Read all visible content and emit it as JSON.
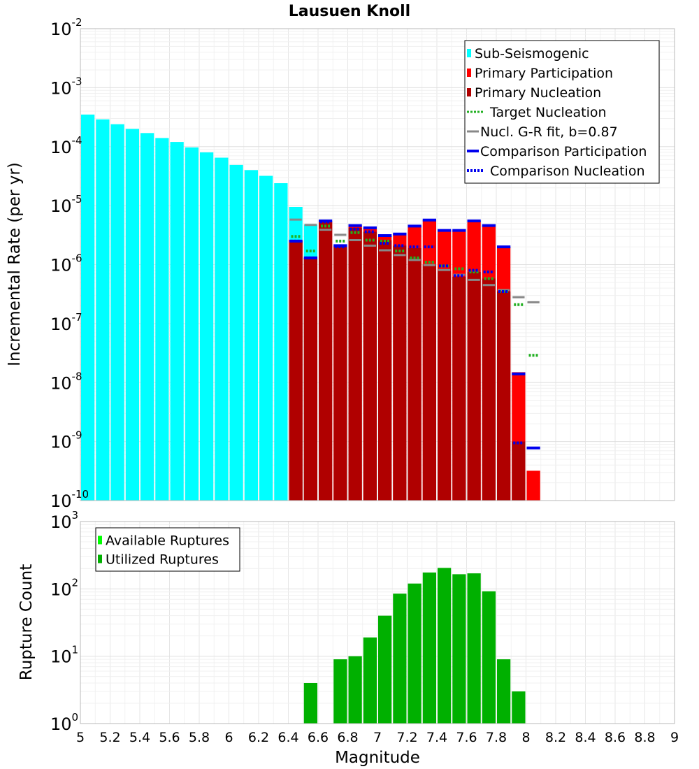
{
  "chart_data": [
    {
      "type": "bar",
      "title": "Lausuen Knoll",
      "xlabel": "",
      "ylabel": "Incremental Rate (per yr)",
      "yscale": "log",
      "xlim": [
        5,
        9
      ],
      "ylim": [
        1e-10,
        0.01
      ],
      "y_tick_exponents": [
        "-10",
        "-9",
        "-8",
        "-7",
        "-6",
        "-5",
        "-4",
        "-3",
        "-2"
      ],
      "y_tick_base": "10",
      "bin_width": 0.1,
      "legend_position": "top-right",
      "legend": [
        {
          "label": "Sub-Seismogenic",
          "color": "#00ffff",
          "kind": "bar"
        },
        {
          "label": "Primary Participation",
          "color": "#ff0000",
          "kind": "bar"
        },
        {
          "label": "Primary Nucleation",
          "color": "#b00000",
          "kind": "bar"
        },
        {
          "label": "Target Nucleation",
          "color": "#22b022",
          "kind": "dotted"
        },
        {
          "label": "Nucl. G-R fit, b=0.87",
          "color": "#888888",
          "kind": "solid"
        },
        {
          "label": "Comparison Participation",
          "color": "#0000ee",
          "kind": "solid"
        },
        {
          "label": "Comparison Nucleation",
          "color": "#0000ee",
          "kind": "dotted"
        }
      ],
      "series": [
        {
          "name": "Sub-Seismogenic",
          "x": [
            5.05,
            5.15,
            5.25,
            5.35,
            5.45,
            5.55,
            5.65,
            5.75,
            5.85,
            5.95,
            6.05,
            6.15,
            6.25,
            6.35,
            6.45,
            6.55
          ],
          "values": [
            0.00035,
            0.00029,
            0.00024,
            0.0002,
            0.00017,
            0.00014,
            0.00012,
            9.7e-05,
            8e-05,
            6.5e-05,
            4.9e-05,
            4e-05,
            3.2e-05,
            2.4e-05,
            9.5e-06,
            4.8e-06
          ]
        },
        {
          "name": "Primary Participation",
          "x": [
            6.45,
            6.55,
            6.65,
            6.75,
            6.85,
            6.95,
            7.05,
            7.15,
            7.25,
            7.35,
            7.45,
            7.55,
            7.65,
            7.75,
            7.85,
            7.95,
            8.05
          ],
          "values": [
            2.5e-06,
            1.3e-06,
            5.5e-06,
            2.1e-06,
            4.6e-06,
            4.2e-06,
            3.1e-06,
            3.3e-06,
            4.5e-06,
            5.7e-06,
            3.8e-06,
            3.8e-06,
            5.5e-06,
            4.6e-06,
            2e-06,
            1.5e-08,
            3.2e-10
          ]
        },
        {
          "name": "Primary Nucleation",
          "x": [
            6.45,
            6.55,
            6.65,
            6.75,
            6.85,
            6.95,
            7.05,
            7.15,
            7.25,
            7.35,
            7.45,
            7.55,
            7.65,
            7.75,
            7.85,
            7.95
          ],
          "values": [
            2.5e-06,
            1.3e-06,
            5.2e-06,
            2e-06,
            4.2e-06,
            3.6e-06,
            2.6e-06,
            2.1e-06,
            1.9e-06,
            1e-06,
            7.8e-07,
            6.2e-07,
            7.5e-07,
            5.8e-07,
            3.5e-07,
            1e-09
          ]
        },
        {
          "name": "Target Nucleation",
          "x": [
            6.45,
            6.55,
            6.65,
            6.75,
            6.85,
            6.95,
            7.05,
            7.15,
            7.25,
            7.35,
            7.45,
            7.55,
            7.65,
            7.75,
            7.85,
            7.95,
            8.05
          ],
          "values": [
            3e-06,
            1.7e-06,
            4.5e-06,
            2.5e-06,
            3.5e-06,
            2.6e-06,
            2.5e-06,
            1.7e-06,
            1.3e-06,
            1.1e-06,
            9.5e-07,
            8.5e-07,
            7.5e-07,
            5.8e-07,
            3.5e-07,
            2.1e-07,
            2.9e-08
          ]
        },
        {
          "name": "Nucl. G-R fit, b=0.87",
          "x": [
            6.45,
            6.55,
            6.65,
            6.75,
            6.85,
            6.95,
            7.05,
            7.15,
            7.25,
            7.35,
            7.45,
            7.55,
            7.65,
            7.75,
            7.85,
            7.95,
            8.05
          ],
          "values": [
            5.8e-06,
            4.7e-06,
            3.9e-06,
            3.2e-06,
            2.6e-06,
            2.1e-06,
            1.75e-06,
            1.45e-06,
            1.2e-06,
            9.8e-07,
            8.1e-07,
            6.7e-07,
            5.5e-07,
            4.5e-07,
            3.7e-07,
            2.8e-07,
            2.3e-07
          ]
        },
        {
          "name": "Comparison Participation",
          "x": [
            6.45,
            6.55,
            6.65,
            6.75,
            6.85,
            6.95,
            7.05,
            7.15,
            7.25,
            7.35,
            7.45,
            7.55,
            7.65,
            7.75,
            7.85,
            7.95,
            8.05
          ],
          "values": [
            2.5e-06,
            1.3e-06,
            5.5e-06,
            2.1e-06,
            4.6e-06,
            4.2e-06,
            3.1e-06,
            3.3e-06,
            4.5e-06,
            5.7e-06,
            3.8e-06,
            3.8e-06,
            5.5e-06,
            4.6e-06,
            2e-06,
            1.4e-08,
            7.8e-10
          ]
        },
        {
          "name": "Comparison Nucleation",
          "x": [
            6.45,
            6.55,
            6.65,
            6.75,
            6.85,
            6.95,
            7.05,
            7.15,
            7.25,
            7.35,
            7.45,
            7.55,
            7.65,
            7.75,
            7.85,
            7.95
          ],
          "values": [
            2.5e-06,
            1.3e-06,
            5.3e-06,
            2e-06,
            4e-06,
            3.6e-06,
            2.3e-06,
            2.1e-06,
            2e-06,
            2e-06,
            9.5e-07,
            6.5e-07,
            8e-07,
            7.5e-07,
            3.5e-07,
            9.5e-10
          ]
        }
      ]
    },
    {
      "type": "bar",
      "title": "",
      "xlabel": "Magnitude",
      "ylabel": "Rupture Count",
      "yscale": "log",
      "xlim": [
        5,
        9
      ],
      "ylim": [
        1,
        1000
      ],
      "y_tick_exponents": [
        "0",
        "1",
        "2",
        "3"
      ],
      "y_tick_base": "10",
      "x_ticks": [
        "5",
        "5.2",
        "5.4",
        "5.6",
        "5.8",
        "6",
        "6.2",
        "6.4",
        "6.6",
        "6.8",
        "7",
        "7.2",
        "7.4",
        "7.6",
        "7.8",
        "8",
        "8.2",
        "8.4",
        "8.6",
        "8.8",
        "9"
      ],
      "bin_width": 0.1,
      "legend_position": "top-left",
      "legend": [
        {
          "label": "Available Ruptures",
          "color": "#00ff00",
          "kind": "bar"
        },
        {
          "label": "Utilized Ruptures",
          "color": "#00b000",
          "kind": "bar"
        }
      ],
      "series": [
        {
          "name": "Utilized Ruptures",
          "x": [
            6.55,
            6.75,
            6.85,
            6.95,
            7.05,
            7.15,
            7.25,
            7.35,
            7.45,
            7.55,
            7.65,
            7.75,
            7.85,
            7.95
          ],
          "values": [
            4,
            9,
            10,
            19,
            40,
            85,
            120,
            175,
            205,
            165,
            170,
            92,
            9,
            3
          ]
        }
      ]
    }
  ]
}
